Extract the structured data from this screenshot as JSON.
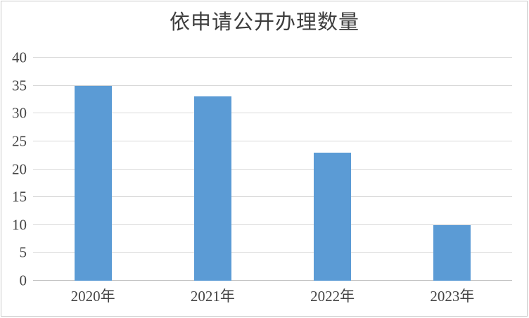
{
  "chart_data": {
    "type": "bar",
    "title": "依申请公开办理数量",
    "categories": [
      "2020年",
      "2021年",
      "2022年",
      "2023年"
    ],
    "values": [
      35,
      33,
      23,
      10
    ],
    "xlabel": "",
    "ylabel": "",
    "ylim": [
      0,
      40
    ],
    "ytick_step": 5,
    "ytick_labels": [
      "0",
      "5",
      "10",
      "15",
      "20",
      "25",
      "30",
      "35",
      "40"
    ],
    "grid": "horizontal",
    "legend": "none",
    "colors": {
      "bar": "#5B9BD5",
      "gridline": "#D9D9D9",
      "axis_line": "#BFBFBF",
      "tick_text": "#444444",
      "title_text": "#3D3D3D",
      "background": "#FFFFFF",
      "frame_border": "#C9C9C9"
    }
  }
}
